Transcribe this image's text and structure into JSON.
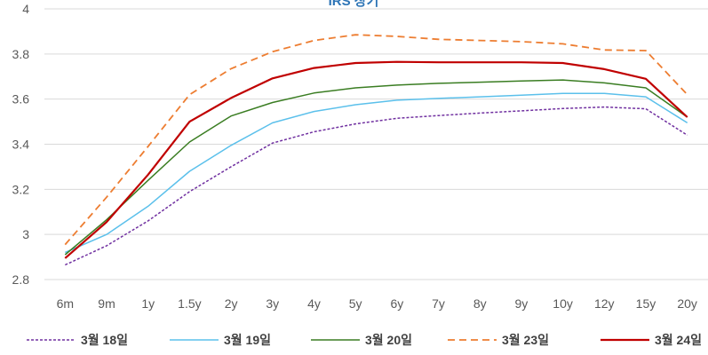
{
  "chart_data": {
    "type": "line",
    "title": "IRS 장기",
    "xlabel": "",
    "ylabel": "",
    "categories": [
      "6m",
      "9m",
      "1y",
      "1.5y",
      "2y",
      "3y",
      "4y",
      "5y",
      "6y",
      "7y",
      "8y",
      "9y",
      "10y",
      "12y",
      "15y",
      "20y"
    ],
    "ylim": [
      2.8,
      4.0
    ],
    "yticks": [
      2.8,
      3.0,
      3.2,
      3.4,
      3.6,
      3.8,
      4.0
    ],
    "ytick_labels": [
      "2.8",
      "3",
      "3.2",
      "3.4",
      "3.6",
      "3.8",
      "4"
    ],
    "grid": true,
    "legend_position": "bottom",
    "series": [
      {
        "name": "3월 18일",
        "color": "#7030A0",
        "dash": "3,2",
        "width": 1.5,
        "values": [
          2.865,
          2.95,
          3.06,
          3.19,
          3.3,
          3.405,
          3.455,
          3.49,
          3.515,
          3.527,
          3.538,
          3.548,
          3.558,
          3.565,
          3.557,
          3.44
        ]
      },
      {
        "name": "3월 19일",
        "color": "#5BC0EB",
        "dash": "",
        "width": 1.5,
        "values": [
          2.92,
          3.0,
          3.125,
          3.28,
          3.395,
          3.495,
          3.545,
          3.575,
          3.595,
          3.603,
          3.61,
          3.617,
          3.625,
          3.625,
          3.61,
          3.495
        ]
      },
      {
        "name": "3월 20일",
        "color": "#3A7D22",
        "dash": "",
        "width": 1.5,
        "values": [
          2.91,
          3.065,
          3.24,
          3.41,
          3.525,
          3.585,
          3.627,
          3.65,
          3.662,
          3.67,
          3.675,
          3.68,
          3.685,
          3.672,
          3.65,
          3.52
        ]
      },
      {
        "name": "3월 23일",
        "color": "#ED7D31",
        "dash": "8,5",
        "width": 1.8,
        "values": [
          2.955,
          3.165,
          3.39,
          3.62,
          3.735,
          3.81,
          3.86,
          3.885,
          3.878,
          3.865,
          3.86,
          3.855,
          3.845,
          3.818,
          3.815,
          3.62
        ]
      },
      {
        "name": "3월 24일",
        "color": "#C00000",
        "dash": "",
        "width": 2.2,
        "values": [
          2.895,
          3.055,
          3.265,
          3.5,
          3.605,
          3.692,
          3.738,
          3.76,
          3.765,
          3.763,
          3.763,
          3.763,
          3.76,
          3.733,
          3.69,
          3.52
        ]
      }
    ]
  }
}
